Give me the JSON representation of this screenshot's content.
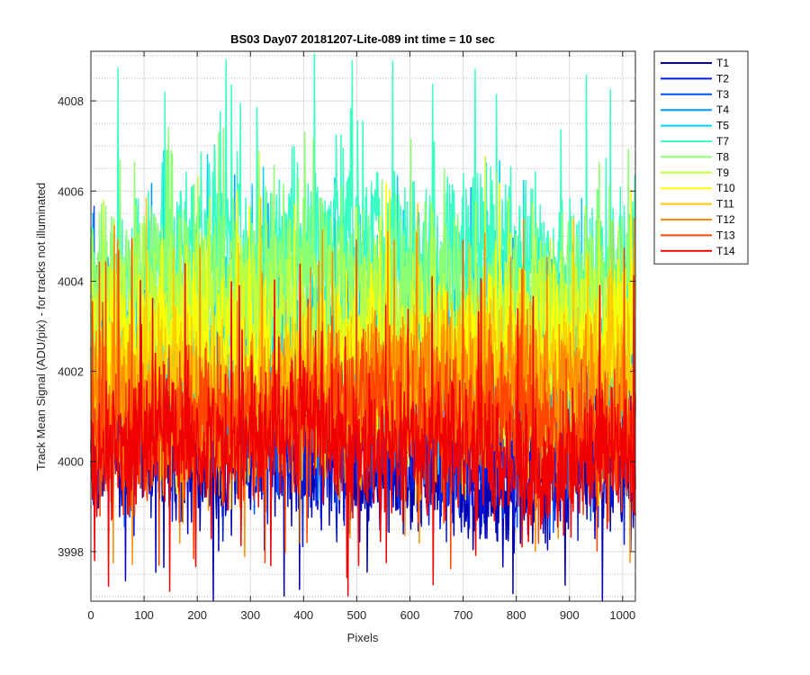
{
  "chart_data": {
    "type": "line",
    "title": "BS03 Day07 20181207-Lite-089 int time = 10 sec",
    "xlabel": "Pixels",
    "ylabel": "Track Mean Signal (ADU/pix) - for tracks not illuminated",
    "xlim": [
      0,
      1024
    ],
    "ylim": [
      3996.9,
      4009.1
    ],
    "x_ticks": [
      0,
      100,
      200,
      300,
      400,
      500,
      600,
      700,
      800,
      900,
      1000
    ],
    "y_ticks": [
      3998,
      4000,
      4002,
      4004,
      4006,
      4008
    ],
    "y_minor_ticks": [
      3997,
      3997.5,
      3998.5,
      3999,
      3999.5,
      4000.5,
      4001,
      4001.5,
      4002.5,
      4003,
      4003.5,
      4004.5,
      4005,
      4005.5,
      4006.5,
      4007,
      4007.5,
      4008.5,
      4009
    ],
    "grid": true,
    "minor_grid": true,
    "legend_position": "outside-right-top",
    "n_points": 1024,
    "series": [
      {
        "name": "T1",
        "color": "#0000b3",
        "mean": 3999.8,
        "amp": 1.1,
        "spike_max": 4004.6,
        "spike_min": 3996.9
      },
      {
        "name": "T2",
        "color": "#001be6",
        "mean": 4000.6,
        "amp": 1.3,
        "spike_max": 4005.2,
        "spike_min": 3998.0
      },
      {
        "name": "T3",
        "color": "#0050ff",
        "mean": 4001.3,
        "amp": 1.4,
        "spike_max": 4005.8,
        "spike_min": 3998.4
      },
      {
        "name": "T4",
        "color": "#0096ff",
        "mean": 4002.1,
        "amp": 1.5,
        "spike_max": 4006.5,
        "spike_min": 3999.0
      },
      {
        "name": "T5",
        "color": "#00d4ff",
        "mean": 4003.0,
        "amp": 1.6,
        "spike_max": 4006.9,
        "spike_min": 3999.5
      },
      {
        "name": "T7",
        "color": "#3cffc3",
        "mean": 4004.6,
        "amp": 1.6,
        "spike_max": 4009.1,
        "spike_min": 4000.4
      },
      {
        "name": "T8",
        "color": "#8cff73",
        "mean": 4003.8,
        "amp": 1.5,
        "spike_max": 4007.5,
        "spike_min": 3999.9
      },
      {
        "name": "T9",
        "color": "#c3ff3c",
        "mean": 4003.1,
        "amp": 1.5,
        "spike_max": 4006.9,
        "spike_min": 3999.5
      },
      {
        "name": "T10",
        "color": "#ffff00",
        "mean": 4002.5,
        "amp": 1.5,
        "spike_max": 4006.2,
        "spike_min": 3999.2
      },
      {
        "name": "T11",
        "color": "#ffc800",
        "mean": 4001.8,
        "amp": 1.4,
        "spike_max": 4005.9,
        "spike_min": 3998.9
      },
      {
        "name": "T12",
        "color": "#ff8c00",
        "mean": 4001.4,
        "amp": 1.4,
        "spike_max": 4005.6,
        "spike_min": 3997.7
      },
      {
        "name": "T13",
        "color": "#ff4600",
        "mean": 4000.9,
        "amp": 1.3,
        "spike_max": 4005.0,
        "spike_min": 3997.6
      },
      {
        "name": "T14",
        "color": "#f00000",
        "mean": 4000.3,
        "amp": 1.3,
        "spike_max": 4004.4,
        "spike_min": 3997.0
      }
    ]
  }
}
